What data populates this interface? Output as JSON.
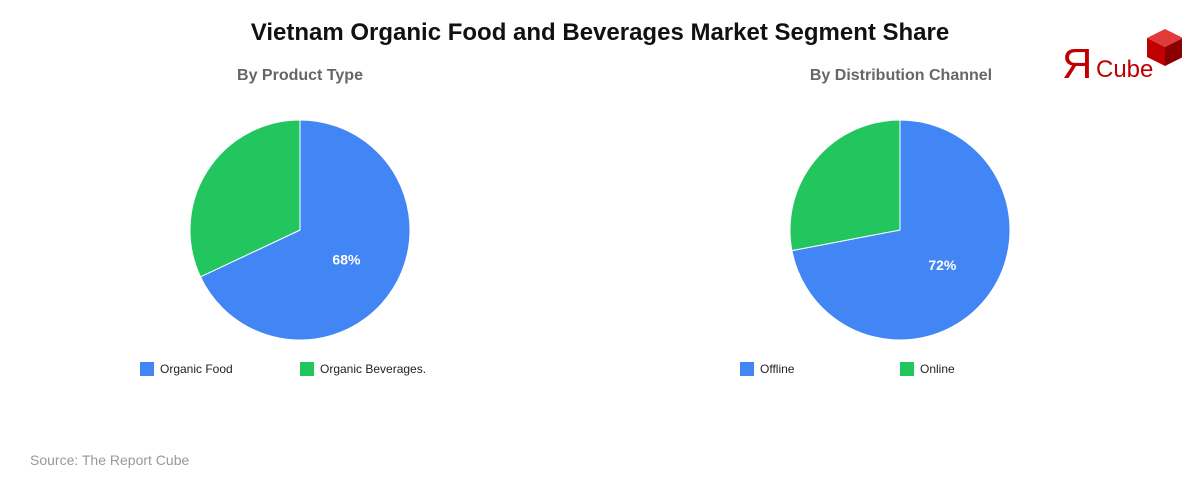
{
  "title": "Vietnam Organic Food and Beverages Market Segment Share",
  "logo": {
    "letter": "Я",
    "text": "Cube"
  },
  "source": "Source: The Report Cube",
  "colors": {
    "blue": "#4285f4",
    "green": "#22c55e",
    "logo_red": "#c00000"
  },
  "chart_data": [
    {
      "type": "pie",
      "title": "By Product Type",
      "series": [
        {
          "name": "Organic Food",
          "value": 68,
          "color": "#4285f4",
          "label": "68%"
        },
        {
          "name": "Organic Beverages.",
          "value": 32,
          "color": "#22c55e",
          "label": ""
        }
      ]
    },
    {
      "type": "pie",
      "title": "By Distribution Channel",
      "series": [
        {
          "name": "Offline",
          "value": 72,
          "color": "#4285f4",
          "label": "72%"
        },
        {
          "name": "Online",
          "value": 28,
          "color": "#22c55e",
          "label": ""
        }
      ]
    }
  ]
}
